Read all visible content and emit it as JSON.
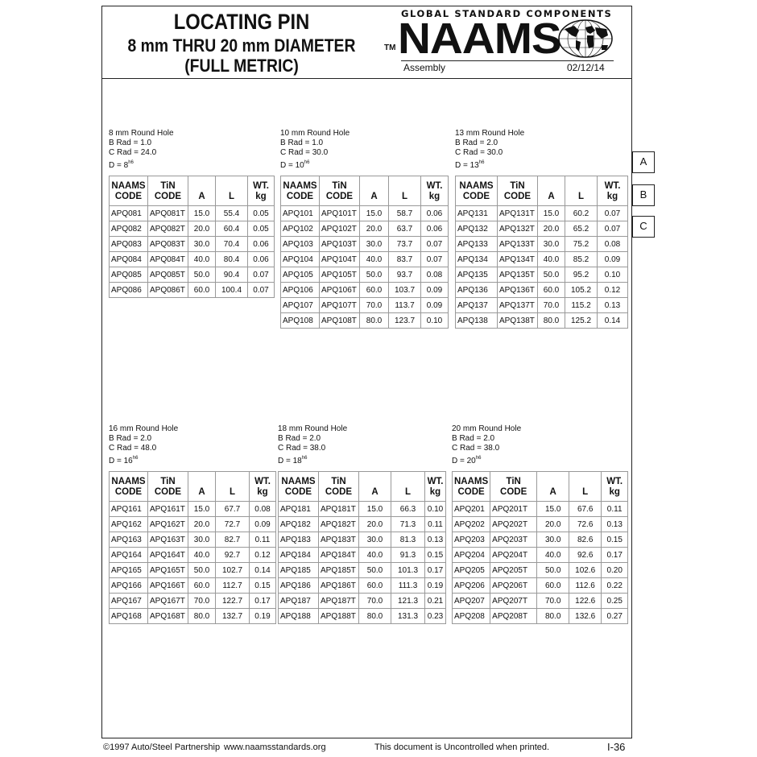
{
  "header": {
    "title": "LOCATING PIN",
    "subtitle": "8 mm THRU 20 mm DIAMETER",
    "subtitle2": "(FULL METRIC)",
    "tagline": "GLOBAL STANDARD COMPONENTS",
    "tm": "TM",
    "brand": "NAAMS",
    "logo_icon": "globe-icon",
    "section": "Assembly",
    "date": "02/12/14"
  },
  "column_headers": {
    "naams": [
      "NAAMS",
      "CODE"
    ],
    "tin": [
      "TiN",
      "CODE"
    ],
    "a": "A",
    "l": "L",
    "wt": [
      "WT.",
      "kg"
    ]
  },
  "tables": [
    {
      "caption": "8 mm Round Hole",
      "b_rad": "B Rad = 1.0",
      "c_rad": "C Rad = 24.0",
      "d": "D = 8",
      "d_tol": "h6",
      "rows": [
        [
          "APQ081",
          "APQ081T",
          "15.0",
          "55.4",
          "0.05"
        ],
        [
          "APQ082",
          "APQ082T",
          "20.0",
          "60.4",
          "0.05"
        ],
        [
          "APQ083",
          "APQ083T",
          "30.0",
          "70.4",
          "0.06"
        ],
        [
          "APQ084",
          "APQ084T",
          "40.0",
          "80.4",
          "0.06"
        ],
        [
          "APQ085",
          "APQ085T",
          "50.0",
          "90.4",
          "0.07"
        ],
        [
          "APQ086",
          "APQ086T",
          "60.0",
          "100.4",
          "0.07"
        ]
      ]
    },
    {
      "caption": "10 mm Round Hole",
      "b_rad": "B Rad = 1.0",
      "c_rad": "C Rad = 30.0",
      "d": "D = 10",
      "d_tol": "h6",
      "rows": [
        [
          "APQ101",
          "APQ101T",
          "15.0",
          "58.7",
          "0.06"
        ],
        [
          "APQ102",
          "APQ102T",
          "20.0",
          "63.7",
          "0.06"
        ],
        [
          "APQ103",
          "APQ103T",
          "30.0",
          "73.7",
          "0.07"
        ],
        [
          "APQ104",
          "APQ104T",
          "40.0",
          "83.7",
          "0.07"
        ],
        [
          "APQ105",
          "APQ105T",
          "50.0",
          "93.7",
          "0.08"
        ],
        [
          "APQ106",
          "APQ106T",
          "60.0",
          "103.7",
          "0.09"
        ],
        [
          "APQ107",
          "APQ107T",
          "70.0",
          "113.7",
          "0.09"
        ],
        [
          "APQ108",
          "APQ108T",
          "80.0",
          "123.7",
          "0.10"
        ]
      ]
    },
    {
      "caption": "13 mm Round Hole",
      "b_rad": "B Rad = 2.0",
      "c_rad": "C Rad = 30.0",
      "d": "D = 13",
      "d_tol": "h6",
      "rows": [
        [
          "APQ131",
          "APQ131T",
          "15.0",
          "60.2",
          "0.07"
        ],
        [
          "APQ132",
          "APQ132T",
          "20.0",
          "65.2",
          "0.07"
        ],
        [
          "APQ133",
          "APQ133T",
          "30.0",
          "75.2",
          "0.08"
        ],
        [
          "APQ134",
          "APQ134T",
          "40.0",
          "85.2",
          "0.09"
        ],
        [
          "APQ135",
          "APQ135T",
          "50.0",
          "95.2",
          "0.10"
        ],
        [
          "APQ136",
          "APQ136T",
          "60.0",
          "105.2",
          "0.12"
        ],
        [
          "APQ137",
          "APQ137T",
          "70.0",
          "115.2",
          "0.13"
        ],
        [
          "APQ138",
          "APQ138T",
          "80.0",
          "125.2",
          "0.14"
        ]
      ]
    },
    {
      "caption": "16 mm Round Hole",
      "b_rad": "B Rad = 2.0",
      "c_rad": "C Rad = 48.0",
      "d": "D = 16",
      "d_tol": "h6",
      "rows": [
        [
          "APQ161",
          "APQ161T",
          "15.0",
          "67.7",
          "0.08"
        ],
        [
          "APQ162",
          "APQ162T",
          "20.0",
          "72.7",
          "0.09"
        ],
        [
          "APQ163",
          "APQ163T",
          "30.0",
          "82.7",
          "0.11"
        ],
        [
          "APQ164",
          "APQ164T",
          "40.0",
          "92.7",
          "0.12"
        ],
        [
          "APQ165",
          "APQ165T",
          "50.0",
          "102.7",
          "0.14"
        ],
        [
          "APQ166",
          "APQ166T",
          "60.0",
          "112.7",
          "0.15"
        ],
        [
          "APQ167",
          "APQ167T",
          "70.0",
          "122.7",
          "0.17"
        ],
        [
          "APQ168",
          "APQ168T",
          "80.0",
          "132.7",
          "0.19"
        ]
      ]
    },
    {
      "caption": "18 mm Round Hole",
      "b_rad": "B Rad = 2.0",
      "c_rad": "C Rad = 38.0",
      "d": "D = 18",
      "d_tol": "h6",
      "rows": [
        [
          "APQ181",
          "APQ181T",
          "15.0",
          "66.3",
          "0.10"
        ],
        [
          "APQ182",
          "APQ182T",
          "20.0",
          "71.3",
          "0.11"
        ],
        [
          "APQ183",
          "APQ183T",
          "30.0",
          "81.3",
          "0.13"
        ],
        [
          "APQ184",
          "APQ184T",
          "40.0",
          "91.3",
          "0.15"
        ],
        [
          "APQ185",
          "APQ185T",
          "50.0",
          "101.3",
          "0.17"
        ],
        [
          "APQ186",
          "APQ186T",
          "60.0",
          "111.3",
          "0.19"
        ],
        [
          "APQ187",
          "APQ187T",
          "70.0",
          "121.3",
          "0.21"
        ],
        [
          "APQ188",
          "APQ188T",
          "80.0",
          "131.3",
          "0.23"
        ]
      ]
    },
    {
      "caption": "20 mm Round Hole",
      "b_rad": "B Rad = 2.0",
      "c_rad": "C Rad = 38.0",
      "d": "D = 20",
      "d_tol": "h6",
      "rows": [
        [
          "APQ201",
          "APQ201T",
          "15.0",
          "67.6",
          "0.11"
        ],
        [
          "APQ202",
          "APQ202T",
          "20.0",
          "72.6",
          "0.13"
        ],
        [
          "APQ203",
          "APQ203T",
          "30.0",
          "82.6",
          "0.15"
        ],
        [
          "APQ204",
          "APQ204T",
          "40.0",
          "92.6",
          "0.17"
        ],
        [
          "APQ205",
          "APQ205T",
          "50.0",
          "102.6",
          "0.20"
        ],
        [
          "APQ206",
          "APQ206T",
          "60.0",
          "112.6",
          "0.22"
        ],
        [
          "APQ207",
          "APQ207T",
          "70.0",
          "122.6",
          "0.25"
        ],
        [
          "APQ208",
          "APQ208T",
          "80.0",
          "132.6",
          "0.27"
        ]
      ]
    }
  ],
  "side_tabs": [
    "A",
    "B",
    "C"
  ],
  "footer": {
    "copyright": "©1997 Auto/Steel Partnership",
    "website": "www.naamsstandards.org",
    "notice": "This document is Uncontrolled when printed.",
    "page": "I-36"
  }
}
